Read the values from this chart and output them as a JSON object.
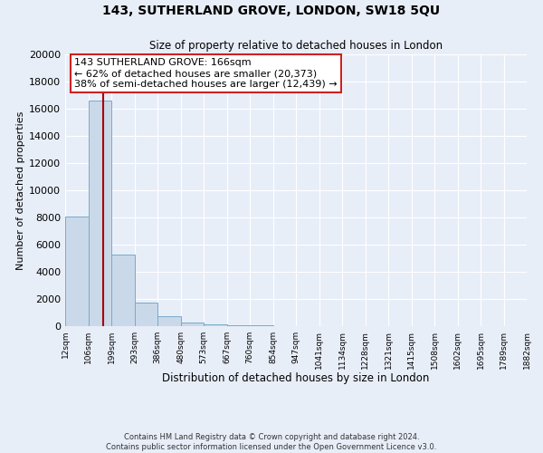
{
  "title": "143, SUTHERLAND GROVE, LONDON, SW18 5QU",
  "subtitle": "Size of property relative to detached houses in London",
  "xlabel": "Distribution of detached houses by size in London",
  "ylabel": "Number of detached properties",
  "bin_edges": [
    12,
    106,
    199,
    293,
    386,
    480,
    573,
    667,
    760,
    854,
    947,
    1041,
    1134,
    1228,
    1321,
    1415,
    1508,
    1602,
    1695,
    1789,
    1882
  ],
  "bin_labels": [
    "12sqm",
    "106sqm",
    "199sqm",
    "293sqm",
    "386sqm",
    "480sqm",
    "573sqm",
    "667sqm",
    "760sqm",
    "854sqm",
    "947sqm",
    "1041sqm",
    "1134sqm",
    "1228sqm",
    "1321sqm",
    "1415sqm",
    "1508sqm",
    "1602sqm",
    "1695sqm",
    "1789sqm",
    "1882sqm"
  ],
  "bar_heights": [
    8100,
    16600,
    5300,
    1750,
    750,
    300,
    150,
    100,
    80,
    0,
    0,
    0,
    0,
    0,
    0,
    0,
    0,
    0,
    0,
    0
  ],
  "bar_color": "#c9d9ea",
  "bar_edge_color": "#7aaac8",
  "property_line_x": 166,
  "property_line_color": "#aa0000",
  "annotation_title": "143 SUTHERLAND GROVE: 166sqm",
  "annotation_line1": "← 62% of detached houses are smaller (20,373)",
  "annotation_line2": "38% of semi-detached houses are larger (12,439) →",
  "annotation_box_color": "#ffffff",
  "annotation_box_edge": "#cc2222",
  "ylim": [
    0,
    20000
  ],
  "yticks": [
    0,
    2000,
    4000,
    6000,
    8000,
    10000,
    12000,
    14000,
    16000,
    18000,
    20000
  ],
  "bg_color": "#e8eef8",
  "plot_bg_color": "#e8eef8",
  "grid_color": "#ffffff",
  "footer_line1": "Contains HM Land Registry data © Crown copyright and database right 2024.",
  "footer_line2": "Contains public sector information licensed under the Open Government Licence v3.0."
}
